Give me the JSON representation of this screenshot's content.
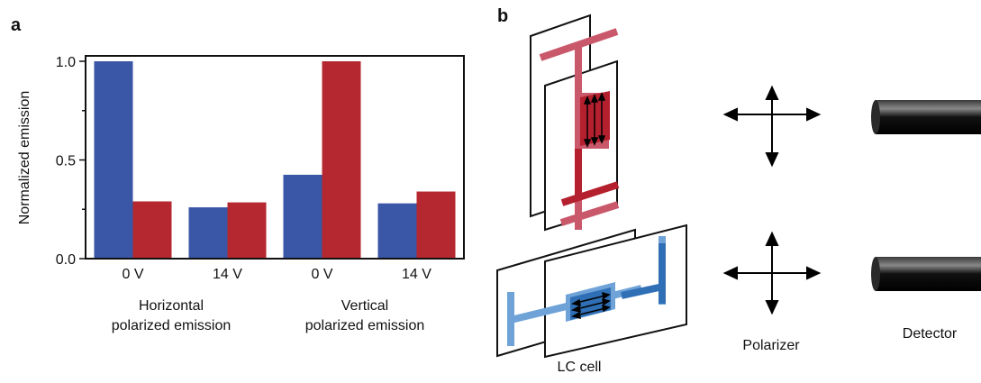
{
  "panel_a": {
    "letter": "a",
    "chart_data": {
      "type": "bar",
      "ylabel": "Normalized emission",
      "ylim": [
        0,
        1.0
      ],
      "yticks": [
        "0.0",
        "0.5",
        "1.0"
      ],
      "categories": [
        "0 V",
        "14 V",
        "0 V",
        "14 V"
      ],
      "groups": [
        {
          "label_line1": "Horizontal",
          "label_line2": "polarized emission"
        },
        {
          "label_line1": "Vertical",
          "label_line2": "polarized emission"
        }
      ],
      "series": [
        {
          "color": "#3a56a6",
          "values": [
            1.0,
            0.26,
            0.425,
            0.28
          ]
        },
        {
          "color": "#b5282f",
          "values": [
            0.29,
            0.285,
            1.0,
            0.34
          ]
        }
      ],
      "grid": false,
      "legend": "none"
    }
  },
  "panel_b": {
    "letter": "b",
    "labels": {
      "lc_cell": "LC cell",
      "polarizer": "Polarizer",
      "detector": "Detector"
    },
    "colors": {
      "red_dark": "#b5202e",
      "red_light": "#c9586a",
      "blue_dark": "#2f6fb5",
      "blue_light": "#6fa3d8"
    }
  }
}
